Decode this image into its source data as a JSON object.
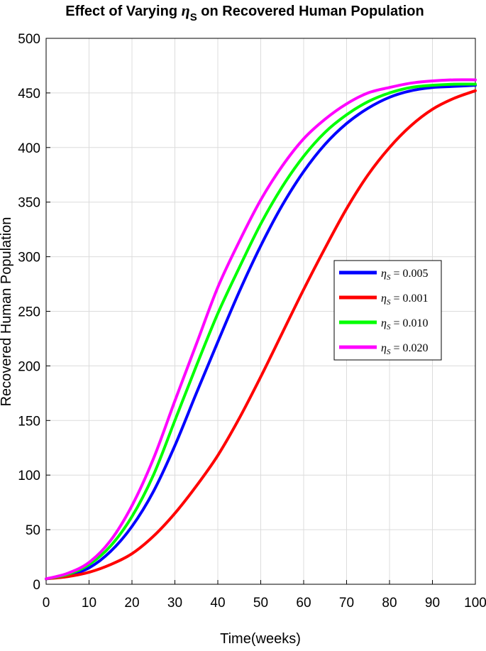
{
  "chart_data": {
    "type": "line",
    "title": {
      "prefix": "Effect of Varying ",
      "symbol": "η",
      "subscript": "S",
      "suffix": " on Recovered Human Population"
    },
    "xlabel": "Time(weeks)",
    "ylabel": "Recovered Human Population",
    "xlim": [
      0,
      100
    ],
    "ylim": [
      0,
      500
    ],
    "xticks": [
      0,
      10,
      20,
      30,
      40,
      50,
      60,
      70,
      80,
      90,
      100
    ],
    "yticks": [
      0,
      50,
      100,
      150,
      200,
      250,
      300,
      350,
      400,
      450,
      500
    ],
    "grid": true,
    "legend_position": "center-right",
    "x": [
      0,
      5,
      10,
      15,
      20,
      25,
      30,
      35,
      40,
      45,
      50,
      55,
      60,
      65,
      70,
      75,
      80,
      85,
      90,
      95,
      100
    ],
    "series": [
      {
        "name": "η_S = 0.005",
        "legend": {
          "sym": "η",
          "sub": "S",
          "value": " = 0.005"
        },
        "color": "#0000ff",
        "values": [
          5,
          8,
          15,
          30,
          53,
          85,
          127,
          175,
          222,
          268,
          310,
          347,
          378,
          403,
          422,
          436,
          446,
          452,
          455,
          456,
          457
        ]
      },
      {
        "name": "η_S = 0.001",
        "legend": {
          "sym": "η",
          "sub": "S",
          "value": " = 0.001"
        },
        "color": "#ff0000",
        "values": [
          5,
          7,
          11,
          18,
          28,
          44,
          65,
          90,
          118,
          152,
          190,
          230,
          270,
          308,
          344,
          375,
          400,
          420,
          435,
          445,
          452
        ]
      },
      {
        "name": "η_S = 0.010",
        "legend": {
          "sym": "η",
          "sub": "S",
          "value": " = 0.010"
        },
        "color": "#00ff00",
        "values": [
          5,
          9,
          18,
          35,
          62,
          100,
          150,
          200,
          248,
          290,
          330,
          364,
          392,
          414,
          430,
          442,
          450,
          455,
          457,
          458,
          458
        ]
      },
      {
        "name": "η_S = 0.020",
        "legend": {
          "sym": "η",
          "sub": "S",
          "value": " = 0.020"
        },
        "color": "#ff00ff",
        "values": [
          5,
          10,
          20,
          40,
          72,
          115,
          168,
          220,
          272,
          314,
          352,
          383,
          408,
          426,
          440,
          450,
          455,
          459,
          461,
          462,
          462
        ]
      }
    ]
  }
}
